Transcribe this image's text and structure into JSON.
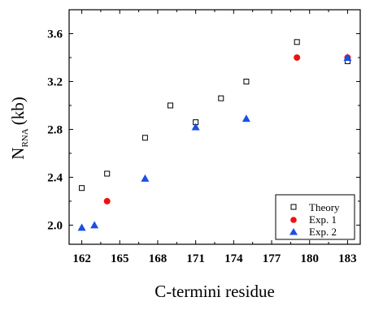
{
  "chart_data": {
    "type": "scatter",
    "xlabel": "C-termini residue",
    "ylabel_main": "N",
    "ylabel_sub": "RNA",
    "ylabel_unit": "(kb)",
    "xlim": [
      161,
      184
    ],
    "ylim": [
      1.84,
      3.8
    ],
    "xticks": [
      162,
      165,
      168,
      171,
      174,
      177,
      180,
      183
    ],
    "yticks": [
      2.0,
      2.4,
      2.8,
      3.2,
      3.6
    ],
    "ytick_labels": [
      "2.0",
      "2.4",
      "2.8",
      "3.2",
      "3.6"
    ],
    "legend_position": "bottom-right",
    "series": [
      {
        "name": "Theory",
        "marker": "square-open",
        "color": "#000000",
        "x": [
          162,
          164,
          167,
          169,
          171,
          173,
          175,
          179,
          183
        ],
        "y": [
          2.31,
          2.43,
          2.73,
          3.0,
          2.86,
          3.06,
          3.2,
          3.53,
          3.37
        ]
      },
      {
        "name": "Exp. 1",
        "marker": "circle",
        "color": "#ee1111",
        "x": [
          164,
          179,
          183
        ],
        "y": [
          2.2,
          3.4,
          3.4
        ]
      },
      {
        "name": "Exp. 2",
        "marker": "triangle",
        "color": "#1a4fe6",
        "x": [
          162,
          163,
          167,
          171,
          175,
          183
        ],
        "y": [
          1.98,
          2.0,
          2.39,
          2.82,
          2.89,
          3.4
        ]
      }
    ]
  }
}
